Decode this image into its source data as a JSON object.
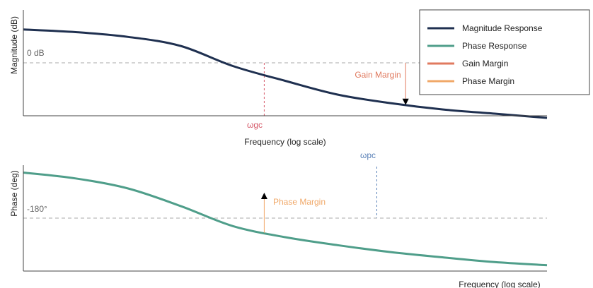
{
  "colors": {
    "magnitude": "#1f3050",
    "phase": "#4f9e8a",
    "gain_margin": "#e07a5f",
    "phase_margin": "#f0a868",
    "wgc": "#d65a6a",
    "wpc": "#5b82b8",
    "reference": "#bbbbbb",
    "axis": "#444444",
    "text": "#222222",
    "muted": "#666666"
  },
  "legend": [
    {
      "label": "Magnitude Response",
      "color": "#1f3050"
    },
    {
      "label": "Phase Response",
      "color": "#4f9e8a"
    },
    {
      "label": "Gain Margin",
      "color": "#e07a5f"
    },
    {
      "label": "Phase Margin",
      "color": "#f0a868"
    }
  ],
  "chart_data": [
    {
      "type": "line",
      "ylabel": "Magnitude (dB)",
      "xlabel": "Frequency (log scale)",
      "reference_label": "0 dB",
      "crossover_label": "ωgc",
      "margin_label": "Gain Margin",
      "x": [
        0,
        0.1,
        0.2,
        0.3,
        0.4,
        0.5,
        0.6,
        0.7,
        0.8,
        0.9,
        1.0
      ],
      "series": [
        {
          "name": "Magnitude Response",
          "values": [
            0.815,
            0.79,
            0.745,
            0.66,
            0.47,
            0.33,
            0.2,
            0.12,
            0.06,
            0.02,
            -0.02
          ]
        }
      ],
      "reference_y": 0.5,
      "crossover_x": 0.46,
      "margin_at_x": 0.73
    },
    {
      "type": "line",
      "ylabel": "Phase (deg)",
      "xlabel": "Frequency (log scale)",
      "reference_label": "-180°",
      "crossover_label": "ωpc",
      "margin_label": "Phase Margin",
      "x": [
        0,
        0.1,
        0.2,
        0.3,
        0.4,
        0.5,
        0.6,
        0.7,
        0.8,
        0.9,
        1.0
      ],
      "series": [
        {
          "name": "Phase Response",
          "values": [
            0.93,
            0.875,
            0.78,
            0.615,
            0.425,
            0.32,
            0.245,
            0.18,
            0.13,
            0.085,
            0.055
          ]
        }
      ],
      "reference_y": 0.5,
      "crossover_x": 0.675,
      "margin_at_x": 0.46
    }
  ]
}
